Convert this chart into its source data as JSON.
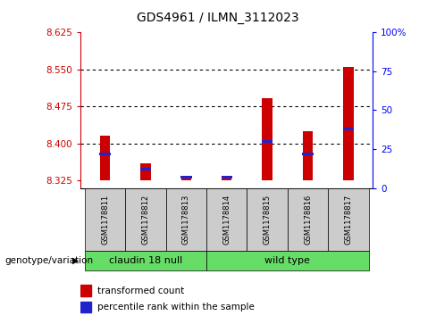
{
  "title": "GDS4961 / ILMN_3112023",
  "samples": [
    "GSM1178811",
    "GSM1178812",
    "GSM1178813",
    "GSM1178814",
    "GSM1178815",
    "GSM1178816",
    "GSM1178817"
  ],
  "group_labels": [
    "claudin 18 null",
    "wild type"
  ],
  "group1_count": 3,
  "group2_count": 4,
  "transformed_count": [
    8.415,
    8.36,
    8.335,
    8.332,
    8.492,
    8.425,
    8.555
  ],
  "percentile_rank": [
    22,
    12,
    7,
    7,
    30,
    22,
    38
  ],
  "ylim_left": [
    8.31,
    8.625
  ],
  "ylim_right": [
    0,
    100
  ],
  "yticks_left": [
    8.325,
    8.4,
    8.475,
    8.55,
    8.625
  ],
  "yticks_right": [
    0,
    25,
    50,
    75,
    100
  ],
  "bar_base": 8.325,
  "red_color": "#CC0000",
  "blue_color": "#2222CC",
  "bg_color": "#FFFFFF",
  "legend_label_red": "transformed count",
  "legend_label_blue": "percentile rank within the sample",
  "genotype_label": "genotype/variation",
  "sample_bg": "#CCCCCC",
  "group_bg": "#66DD66",
  "bar_width": 0.25
}
